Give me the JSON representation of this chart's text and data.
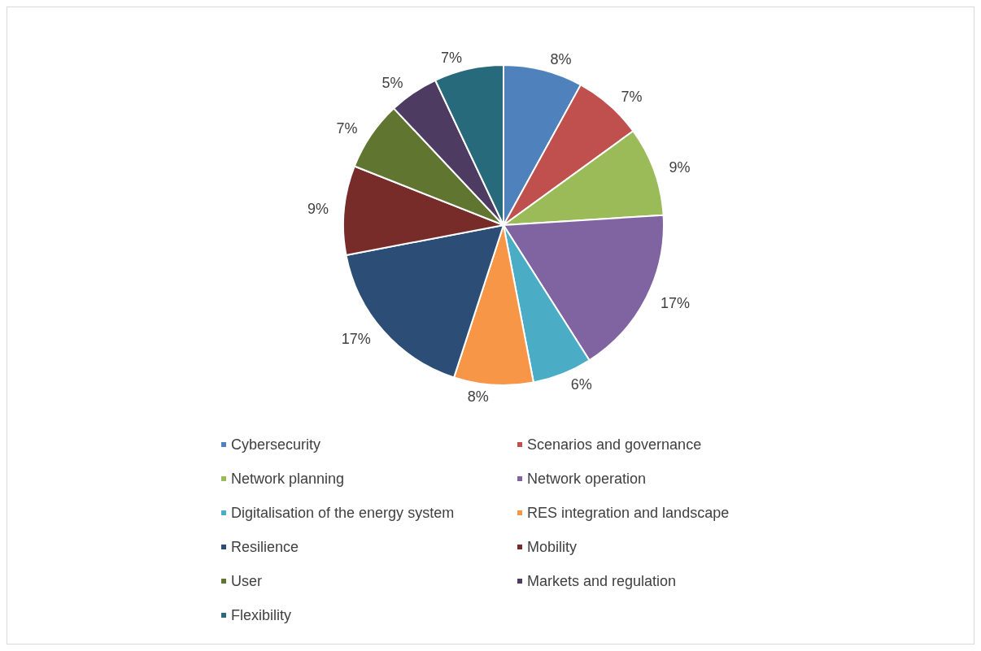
{
  "chart_data": {
    "type": "pie",
    "categories": [
      "Cybersecurity",
      "Scenarios and governance",
      "Network planning",
      "Network operation",
      "Digitalisation of the energy system",
      "RES integration and landscape",
      "Resilience",
      "Mobility",
      "User",
      "Markets and regulation",
      "Flexibility"
    ],
    "values": [
      8,
      7,
      9,
      17,
      6,
      8,
      17,
      9,
      7,
      5,
      7
    ],
    "colors": [
      "#4f81bd",
      "#c0504d",
      "#9bbb59",
      "#8064a2",
      "#4bacc6",
      "#f79646",
      "#2c4d75",
      "#772c2a",
      "#5f7530",
      "#4d3b62",
      "#276a7c"
    ],
    "value_labels": [
      "8%",
      "7%",
      "9%",
      "17%",
      "6%",
      "8%",
      "17%",
      "9%",
      "7%",
      "5%",
      "7%"
    ],
    "legend": "bottom"
  }
}
